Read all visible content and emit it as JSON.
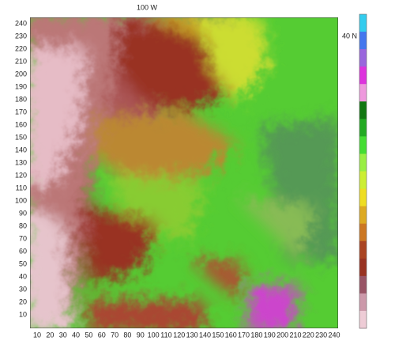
{
  "map": {
    "labels": {
      "top": "100 W",
      "right": "40 N"
    },
    "x_ticks": [
      10,
      20,
      30,
      40,
      50,
      60,
      70,
      80,
      90,
      100,
      110,
      120,
      130,
      140,
      150,
      160,
      170,
      180,
      190,
      200,
      210,
      220,
      230,
      240
    ],
    "y_ticks": [
      10,
      20,
      30,
      40,
      50,
      60,
      70,
      80,
      90,
      100,
      110,
      120,
      130,
      140,
      150,
      160,
      170,
      180,
      190,
      200,
      210,
      220,
      230,
      240
    ],
    "colorbar": [
      "#33ccee",
      "#4477ee",
      "#9966dd",
      "#dd33dd",
      "#ee99dd",
      "#117711",
      "#22aa22",
      "#44dd33",
      "#99ee44",
      "#ccee33",
      "#eedd22",
      "#ddaa22",
      "#cc7722",
      "#aa4422",
      "#993322",
      "#995566",
      "#cc99aa",
      "#eeccd6"
    ]
  }
}
